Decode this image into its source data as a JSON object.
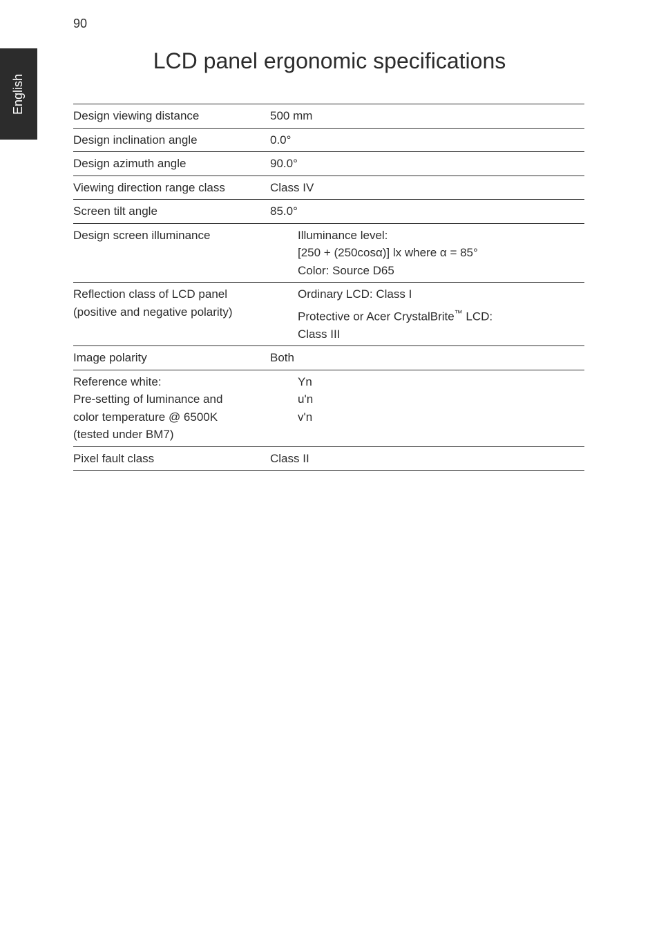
{
  "page_number": "90",
  "side_tab": "English",
  "title": "LCD panel ergonomic specifications",
  "table": {
    "rows": [
      {
        "label": "Design viewing distance",
        "value": "500 mm",
        "border": true
      },
      {
        "label": "Design inclination angle",
        "value": "0.0°",
        "border": true
      },
      {
        "label": "Design azimuth angle",
        "value": "90.0°",
        "border": true
      },
      {
        "label": "Viewing direction range class",
        "value": "Class IV",
        "border": true
      },
      {
        "label": "Screen tilt angle",
        "value": "85.0°",
        "border": true
      },
      {
        "label": "Design screen illuminance",
        "value_lines": [
          "Illuminance level:",
          "[250 + (250cosα)] lx where α = 85°",
          "Color: Source D65"
        ],
        "indent": true,
        "border": true
      },
      {
        "label_lines": [
          "Reflection class of LCD panel",
          "(positive and negative polarity)"
        ],
        "value_groups": [
          {
            "text": "Ordinary LCD: Class I"
          },
          {
            "text_html": "Protective or Acer CrystalBrite™ LCD:",
            "below": "Class III"
          }
        ],
        "indent": true,
        "border": true
      },
      {
        "label": "Image polarity",
        "value": "Both",
        "border": true
      },
      {
        "label_lines": [
          "Reference white:",
          "Pre-setting of luminance and",
          "color temperature @ 6500K",
          "(tested under BM7)"
        ],
        "value_lines": [
          "Yn",
          "u'n",
          "v'n"
        ],
        "indent": true,
        "border": true
      },
      {
        "label": "Pixel fault class",
        "value": "Class II",
        "border": true,
        "bottom_border": true
      }
    ]
  }
}
